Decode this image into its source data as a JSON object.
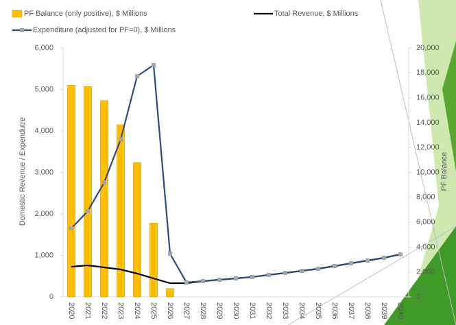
{
  "chart_data": {
    "type": "bar-line",
    "y_label": "Domestic Revenue / Expendutre",
    "y2_label": "PF Balance",
    "categories": [
      "2020",
      "2021",
      "2022",
      "2023",
      "2024",
      "2025",
      "2026",
      "2027",
      "2028",
      "2029",
      "2030",
      "2031",
      "2032",
      "2033",
      "2034",
      "2035",
      "2036",
      "2037",
      "2038",
      "2039",
      "2040"
    ],
    "series": [
      {
        "name": "PF Balance (only positive), $ Millions",
        "kind": "bar",
        "axis": "y2",
        "color": "#ffc000",
        "values": [
          17000,
          16900,
          15770,
          13830,
          10800,
          5930,
          670,
          0,
          0,
          0,
          0,
          0,
          0,
          0,
          0,
          0,
          0,
          0,
          0,
          0,
          0
        ]
      },
      {
        "name": "Total Revenue, $ Millions",
        "kind": "line",
        "color": "#000000",
        "values": [
          727,
          760,
          711,
          661,
          562,
          446,
          330,
          330,
          380,
          413,
          446,
          480,
          530,
          578,
          628,
          678,
          744,
          810,
          876,
          942,
          1025
        ]
      },
      {
        "name": "Expenditure (adjusted for PF=0), $ Millions",
        "kind": "line-marker",
        "color": "#2e4a7d",
        "marker_color": "#a5a5a5",
        "values": [
          1653,
          2066,
          2760,
          3800,
          5320,
          5590,
          1040,
          347,
          380,
          413,
          446,
          480,
          530,
          578,
          628,
          678,
          744,
          810,
          876,
          942,
          1025
        ]
      }
    ],
    "ylim": [
      0,
      6000
    ],
    "yticks": [
      0,
      {
        "value": 1000,
        "label": "1,000"
      },
      {
        "value": 2000,
        "label": "2,000"
      },
      {
        "value": 3000,
        "label": "3,000"
      },
      {
        "value": 4000,
        "label": "4,000"
      },
      {
        "value": 5000,
        "label": "5,000"
      },
      {
        "value": 6000,
        "label": "6,000"
      }
    ],
    "y2lim": [
      0,
      20000
    ],
    "y2ticks": [
      0,
      {
        "value": 2000,
        "label": "2,000"
      },
      {
        "value": 4000,
        "label": "4,000"
      },
      {
        "value": 6000,
        "label": "6,000"
      },
      {
        "value": 8000,
        "label": "8,000"
      },
      {
        "value": 10000,
        "label": "10,000"
      },
      {
        "value": 12000,
        "label": "12,000"
      },
      {
        "value": 14000,
        "label": "14,000"
      },
      {
        "value": 16000,
        "label": "16,000"
      },
      {
        "value": 18000,
        "label": "18,000"
      },
      {
        "value": 20000,
        "label": "20,000"
      }
    ]
  }
}
